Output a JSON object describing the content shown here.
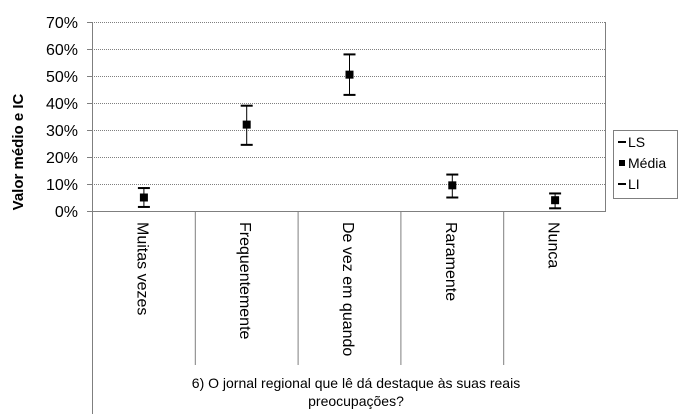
{
  "chart_data": {
    "type": "scatter",
    "title": "",
    "ylabel": "Valor médio e IC",
    "xlabel": "6) O jornal regional que lê dá destaque às suas reais preocupações?",
    "ylim": [
      0,
      70
    ],
    "y_ticks": [
      "0%",
      "10%",
      "20%",
      "30%",
      "40%",
      "50%",
      "60%",
      "70%"
    ],
    "y_tick_values": [
      0,
      10,
      20,
      30,
      40,
      50,
      60,
      70
    ],
    "categories": [
      "Muitas vezes",
      "Frequentemente",
      "De vez em quando",
      "Raramente",
      "Nunca"
    ],
    "series": [
      {
        "name": "LS",
        "values": [
          8.5,
          39,
          58,
          13.5,
          6.5
        ]
      },
      {
        "name": "Média",
        "values": [
          5,
          32,
          50.5,
          9.5,
          4
        ]
      },
      {
        "name": "LI",
        "values": [
          1.5,
          24.5,
          43,
          5,
          1
        ]
      }
    ],
    "grid": true,
    "legend_position": "right",
    "colors": {
      "marker": "#000000",
      "grid": "#7f7f7f",
      "axis": "#7f7f7f"
    }
  }
}
